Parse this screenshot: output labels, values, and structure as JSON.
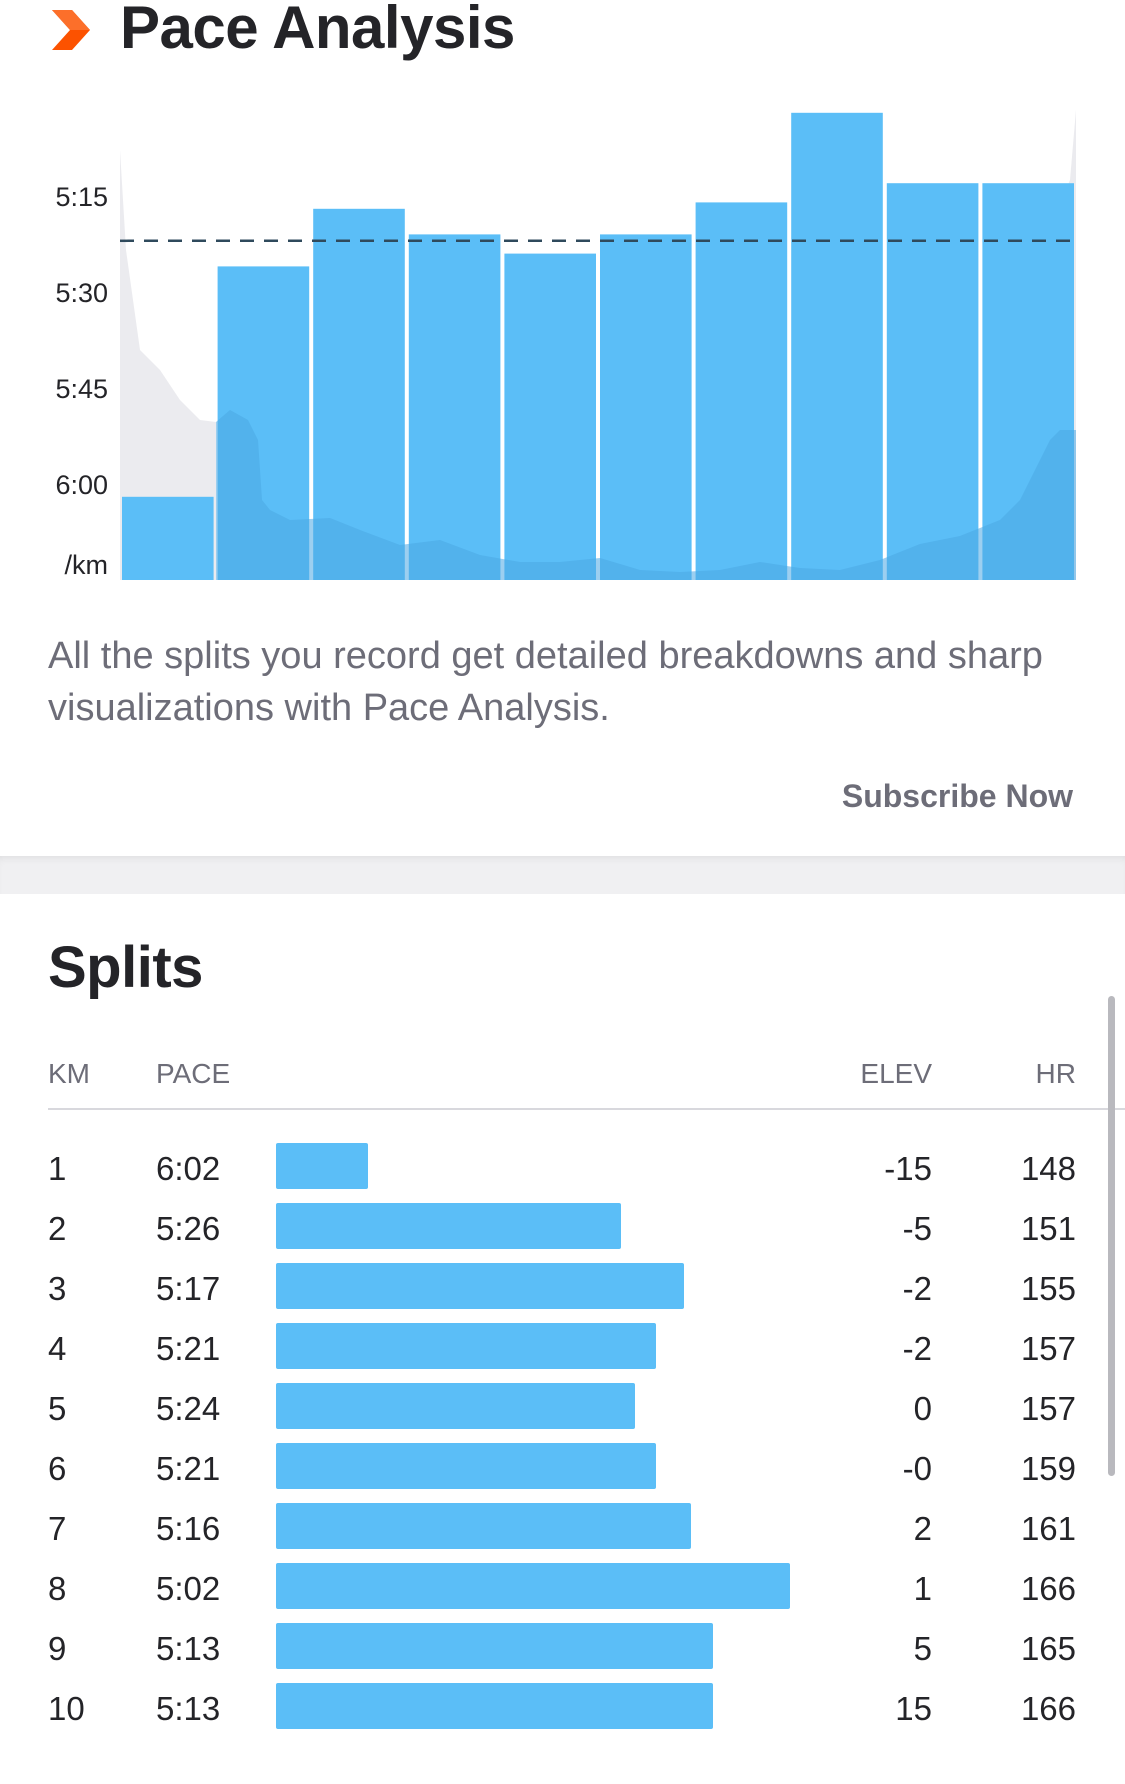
{
  "pace_analysis": {
    "title": "Pace Analysis",
    "description": "All the splits you record get detailed breakdowns and sharp visualizations with Pace Analysis.",
    "subscribe_label": "Subscribe Now",
    "icon": "chevron-right-icon",
    "colors": {
      "accent": "#fc5200",
      "bar": "#5bbef7",
      "bar_shadow": "#4aa8e3",
      "elevation": "#e9e9ee"
    }
  },
  "chart_data": {
    "type": "bar",
    "categories": [
      "1",
      "2",
      "3",
      "4",
      "5",
      "6",
      "7",
      "8",
      "9",
      "10"
    ],
    "values": [
      "6:02",
      "5:26",
      "5:17",
      "5:21",
      "5:24",
      "5:21",
      "5:16",
      "5:02",
      "5:13",
      "5:13"
    ],
    "y_tick_labels": [
      "5:15",
      "5:30",
      "5:45",
      "6:00",
      "/km"
    ],
    "average_line": "5:22",
    "ylim": [
      "6:15",
      "5:00"
    ],
    "grid": false,
    "legend": "none"
  },
  "splits": {
    "title": "Splits",
    "columns": {
      "km": "KM",
      "pace": "PACE",
      "elev": "ELEV",
      "hr": "HR"
    },
    "rows": [
      {
        "km": "1",
        "pace": "6:02",
        "elev": "-15",
        "hr": "148"
      },
      {
        "km": "2",
        "pace": "5:26",
        "elev": "-5",
        "hr": "151"
      },
      {
        "km": "3",
        "pace": "5:17",
        "elev": "-2",
        "hr": "155"
      },
      {
        "km": "4",
        "pace": "5:21",
        "elev": "-2",
        "hr": "157"
      },
      {
        "km": "5",
        "pace": "5:24",
        "elev": "0",
        "hr": "157"
      },
      {
        "km": "6",
        "pace": "5:21",
        "elev": "-0",
        "hr": "159"
      },
      {
        "km": "7",
        "pace": "5:16",
        "elev": "2",
        "hr": "161"
      },
      {
        "km": "8",
        "pace": "5:02",
        "elev": "1",
        "hr": "166"
      },
      {
        "km": "9",
        "pace": "5:13",
        "elev": "5",
        "hr": "165"
      },
      {
        "km": "10",
        "pace": "5:13",
        "elev": "15",
        "hr": "166"
      }
    ]
  }
}
